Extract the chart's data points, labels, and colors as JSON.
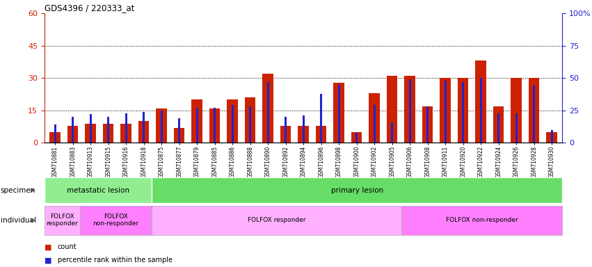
{
  "title": "GDS4396 / 220333_at",
  "samples": [
    "GSM710881",
    "GSM710883",
    "GSM710913",
    "GSM710915",
    "GSM710916",
    "GSM710918",
    "GSM710875",
    "GSM710877",
    "GSM710879",
    "GSM710885",
    "GSM710886",
    "GSM710888",
    "GSM710890",
    "GSM710892",
    "GSM710894",
    "GSM710896",
    "GSM710898",
    "GSM710900",
    "GSM710902",
    "GSM710905",
    "GSM710906",
    "GSM710908",
    "GSM710911",
    "GSM710920",
    "GSM710922",
    "GSM710924",
    "GSM710926",
    "GSM710928",
    "GSM710930"
  ],
  "count": [
    5,
    8,
    9,
    9,
    9,
    10,
    16,
    7,
    20,
    16,
    20,
    21,
    32,
    8,
    8,
    8,
    28,
    5,
    23,
    31,
    31,
    17,
    30,
    30,
    38,
    17,
    30,
    30,
    5
  ],
  "percentile": [
    14,
    20,
    22,
    20,
    23,
    24,
    25,
    19,
    27,
    27,
    29,
    28,
    47,
    20,
    21,
    38,
    45,
    8,
    29,
    16,
    49,
    28,
    48,
    47,
    50,
    23,
    23,
    44,
    10
  ],
  "ylim_left": [
    0,
    60
  ],
  "ylim_right": [
    0,
    100
  ],
  "yticks_left": [
    0,
    15,
    30,
    45,
    60
  ],
  "yticks_right": [
    0,
    25,
    50,
    75,
    100
  ],
  "bar_color_red": "#CC2200",
  "bar_color_blue": "#2222CC",
  "specimen_groups": [
    {
      "label": "metastatic lesion",
      "start": 0,
      "end": 6,
      "color": "#90EE90"
    },
    {
      "label": "primary lesion",
      "start": 6,
      "end": 29,
      "color": "#66DD66"
    }
  ],
  "individual_groups": [
    {
      "label": "FOLFOX\nresponder",
      "start": 0,
      "end": 2,
      "color": "#FFB0FF"
    },
    {
      "label": "FOLFOX\nnon-responder",
      "start": 2,
      "end": 6,
      "color": "#FF80FF"
    },
    {
      "label": "FOLFOX responder",
      "start": 6,
      "end": 20,
      "color": "#FFB0FF"
    },
    {
      "label": "FOLFOX non-responder",
      "start": 20,
      "end": 29,
      "color": "#FF80FF"
    }
  ],
  "specimen_label": "specimen",
  "individual_label": "individual",
  "legend_count": "count",
  "legend_pct": "percentile rank within the sample",
  "grid_lines": [
    15,
    30,
    45
  ]
}
